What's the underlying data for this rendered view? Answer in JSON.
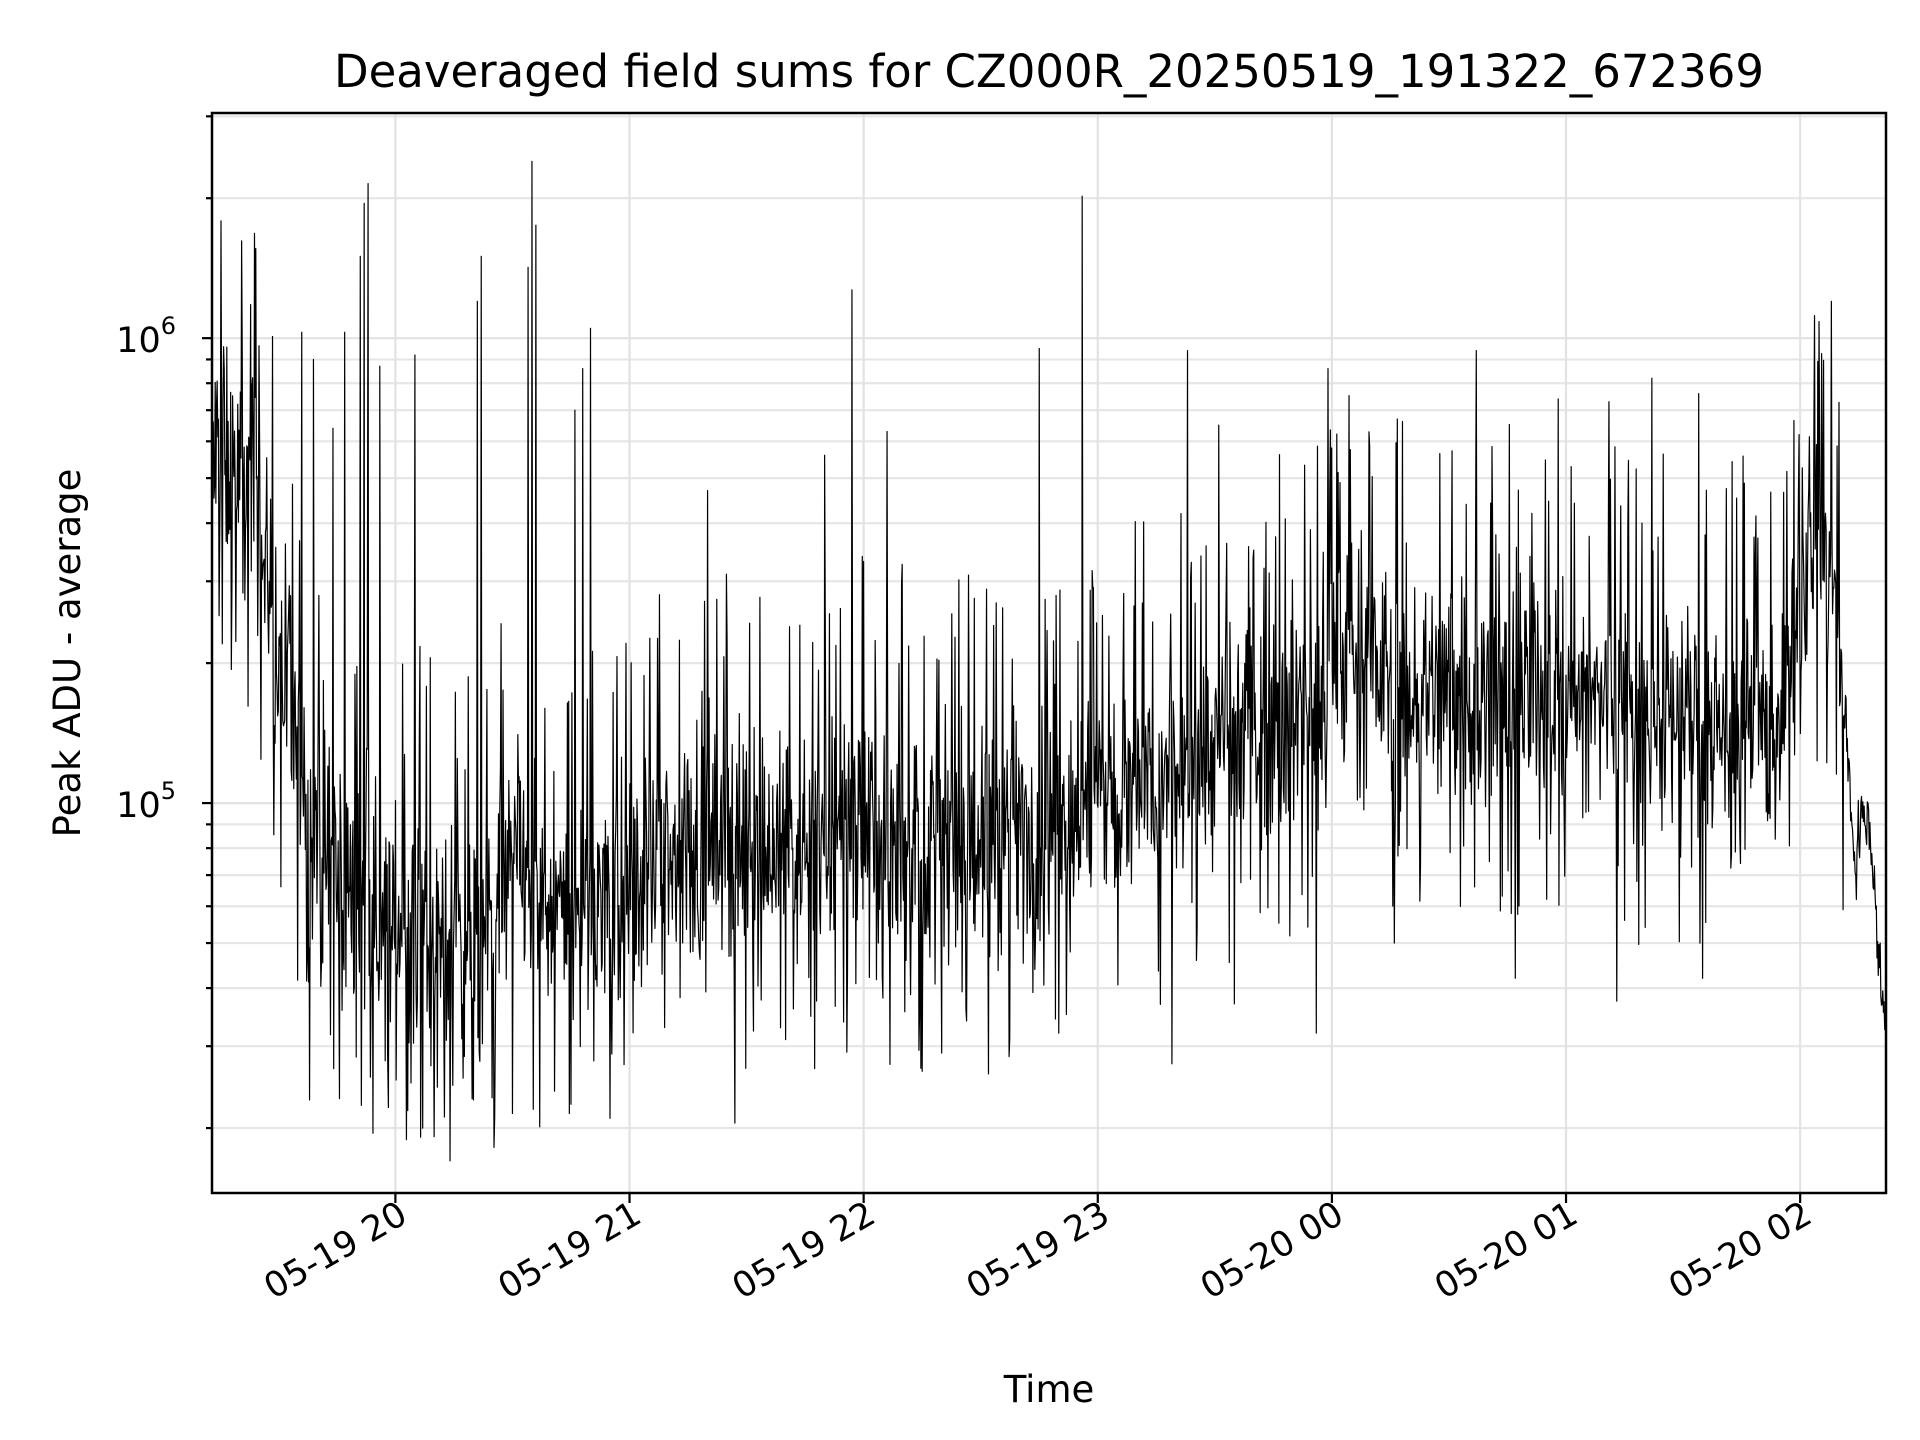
{
  "chart_data": {
    "type": "line",
    "title": "Deaveraged field sums for CZ000R_20250519_191322_672369",
    "xlabel": "Time",
    "ylabel": "Peak ADU - average",
    "yscale": "log",
    "xlim": [
      "2025-05-19 19:13",
      "2025-05-20 02:22"
    ],
    "ylim": [
      14500,
      3050000
    ],
    "grid": true,
    "x_ticks": [
      {
        "value": "2025-05-19 20:00",
        "label": "05-19 20"
      },
      {
        "value": "2025-05-19 21:00",
        "label": "05-19 21"
      },
      {
        "value": "2025-05-19 22:00",
        "label": "05-19 22"
      },
      {
        "value": "2025-05-19 23:00",
        "label": "05-19 23"
      },
      {
        "value": "2025-05-20 00:00",
        "label": "05-20 00"
      },
      {
        "value": "2025-05-20 01:00",
        "label": "05-20 01"
      },
      {
        "value": "2025-05-20 02:00",
        "label": "05-20 02"
      }
    ],
    "y_ticks": [
      {
        "value": 100000,
        "base": "10",
        "exp": "5"
      },
      {
        "value": 1000000,
        "base": "10",
        "exp": "6"
      }
    ],
    "series": [
      {
        "color": "#000000",
        "points": [
          [
            "2025-05-19 19:13",
            520000
          ],
          [
            "2025-05-19 19:16",
            600000
          ],
          [
            "2025-05-19 19:19",
            470000
          ],
          [
            "2025-05-19 19:22",
            520000
          ],
          [
            "2025-05-19 19:25",
            400000
          ],
          [
            "2025-05-19 19:28",
            280000
          ],
          [
            "2025-05-19 19:31",
            190000
          ],
          [
            "2025-05-19 19:34",
            140000
          ],
          [
            "2025-05-19 19:37",
            110000
          ],
          [
            "2025-05-19 19:40",
            92000
          ],
          [
            "2025-05-19 19:43",
            70000
          ],
          [
            "2025-05-19 19:46",
            68000
          ],
          [
            "2025-05-19 19:50",
            62000
          ],
          [
            "2025-05-19 19:54",
            55000
          ],
          [
            "2025-05-19 19:58",
            60000
          ],
          [
            "2025-05-19 20:02",
            52000
          ],
          [
            "2025-05-19 20:06",
            58000
          ],
          [
            "2025-05-19 20:10",
            50000
          ],
          [
            "2025-05-19 20:14",
            55000
          ],
          [
            "2025-05-19 20:18",
            48000
          ],
          [
            "2025-05-19 20:22",
            46000
          ],
          [
            "2025-05-19 20:26",
            60000
          ],
          [
            "2025-05-19 20:30",
            75000
          ],
          [
            "2025-05-19 20:34",
            70000
          ],
          [
            "2025-05-19 20:38",
            60000
          ],
          [
            "2025-05-19 20:42",
            58000
          ],
          [
            "2025-05-19 20:46",
            57000
          ],
          [
            "2025-05-19 20:50",
            58000
          ],
          [
            "2025-05-19 20:54",
            62000
          ],
          [
            "2025-05-19 20:58",
            66000
          ],
          [
            "2025-05-19 21:05",
            72000
          ],
          [
            "2025-05-19 21:12",
            78000
          ],
          [
            "2025-05-19 21:20",
            85000
          ],
          [
            "2025-05-19 21:28",
            82000
          ],
          [
            "2025-05-19 21:36",
            80000
          ],
          [
            "2025-05-19 21:44",
            83000
          ],
          [
            "2025-05-19 21:52",
            85000
          ],
          [
            "2025-05-19 22:00",
            88000
          ],
          [
            "2025-05-19 22:10",
            82000
          ],
          [
            "2025-05-19 22:20",
            78000
          ],
          [
            "2025-05-19 22:30",
            80000
          ],
          [
            "2025-05-19 22:40",
            88000
          ],
          [
            "2025-05-19 22:50",
            95000
          ],
          [
            "2025-05-19 23:00",
            100000
          ],
          [
            "2025-05-19 23:10",
            104000
          ],
          [
            "2025-05-19 23:20",
            110000
          ],
          [
            "2025-05-19 23:30",
            130000
          ],
          [
            "2025-05-19 23:40",
            150000
          ],
          [
            "2025-05-19 23:50",
            160000
          ],
          [
            "2025-05-20 00:00",
            175000
          ],
          [
            "2025-05-20 00:05",
            230000
          ],
          [
            "2025-05-20 00:10",
            200000
          ],
          [
            "2025-05-20 00:20",
            170000
          ],
          [
            "2025-05-20 00:30",
            180000
          ],
          [
            "2025-05-20 00:40",
            165000
          ],
          [
            "2025-05-20 00:50",
            170000
          ],
          [
            "2025-05-20 01:00",
            160000
          ],
          [
            "2025-05-20 01:10",
            165000
          ],
          [
            "2025-05-20 01:20",
            150000
          ],
          [
            "2025-05-20 01:30",
            155000
          ],
          [
            "2025-05-20 01:40",
            145000
          ],
          [
            "2025-05-20 01:50",
            140000
          ],
          [
            "2025-05-20 01:55",
            150000
          ],
          [
            "2025-05-20 02:00",
            280000
          ],
          [
            "2025-05-20 02:03",
            360000
          ],
          [
            "2025-05-20 02:06",
            370000
          ],
          [
            "2025-05-20 02:09",
            250000
          ],
          [
            "2025-05-20 02:12",
            130000
          ],
          [
            "2025-05-20 02:14",
            75000
          ],
          [
            "2025-05-20 02:16",
            95000
          ],
          [
            "2025-05-20 02:18",
            85000
          ],
          [
            "2025-05-20 02:20",
            48000
          ],
          [
            "2025-05-20 02:22",
            32000
          ]
        ],
        "peaks": [
          [
            "2025-05-19 19:36",
            1030000
          ],
          [
            "2025-05-19 19:39",
            900000
          ],
          [
            "2025-05-19 19:44",
            640000
          ],
          [
            "2025-05-19 19:47",
            1030000
          ],
          [
            "2025-05-19 19:51",
            1500000
          ],
          [
            "2025-05-19 19:52",
            1950000
          ],
          [
            "2025-05-19 19:53",
            2150000
          ],
          [
            "2025-05-19 19:56",
            870000
          ],
          [
            "2025-05-19 20:05",
            920000
          ],
          [
            "2025-05-19 20:21",
            1200000
          ],
          [
            "2025-05-19 20:22",
            1500000
          ],
          [
            "2025-05-19 20:34",
            1420000
          ],
          [
            "2025-05-19 20:35",
            2400000
          ],
          [
            "2025-05-19 20:36",
            1750000
          ],
          [
            "2025-05-19 20:46",
            700000
          ],
          [
            "2025-05-19 20:48",
            860000
          ],
          [
            "2025-05-19 20:50",
            1050000
          ],
          [
            "2025-05-19 21:20",
            470000
          ],
          [
            "2025-05-19 21:40",
            670000
          ],
          [
            "2025-05-19 21:50",
            560000
          ],
          [
            "2025-05-19 21:57",
            1270000
          ],
          [
            "2025-05-19 22:06",
            630000
          ],
          [
            "2025-05-19 22:45",
            950000
          ],
          [
            "2025-05-19 22:56",
            2020000
          ],
          [
            "2025-05-19 23:23",
            940000
          ],
          [
            "2025-05-19 23:31",
            650000
          ],
          [
            "2025-05-19 23:59",
            860000
          ],
          [
            "2025-05-20 00:37",
            940000
          ],
          [
            "2025-05-20 00:47",
            840000
          ],
          [
            "2025-05-20 00:58",
            740000
          ],
          [
            "2025-05-20 01:11",
            730000
          ],
          [
            "2025-05-20 01:22",
            820000
          ],
          [
            "2025-05-20 01:34",
            760000
          ],
          [
            "2025-05-20 02:08",
            1200000
          ]
        ],
        "troughs": [
          [
            "2025-05-19 19:38",
            23000
          ],
          [
            "2025-05-19 19:58",
            29000
          ],
          [
            "2025-05-19 20:04",
            25000
          ],
          [
            "2025-05-19 20:07",
            20000
          ],
          [
            "2025-05-19 20:14",
            17000
          ],
          [
            "2025-05-19 20:20",
            23000
          ],
          [
            "2025-05-19 20:30",
            21500
          ],
          [
            "2025-05-19 20:45",
            22500
          ],
          [
            "2025-05-19 20:55",
            21000
          ],
          [
            "2025-05-19 21:27",
            20500
          ],
          [
            "2025-05-19 21:40",
            31000
          ],
          [
            "2025-05-19 22:15",
            26500
          ],
          [
            "2025-05-19 22:20",
            29000
          ],
          [
            "2025-05-19 22:50",
            32000
          ],
          [
            "2025-05-19 23:19",
            27500
          ],
          [
            "2025-05-19 23:35",
            37000
          ],
          [
            "2025-05-19 23:56",
            32000
          ],
          [
            "2025-05-20 00:16",
            50000
          ],
          [
            "2025-05-20 00:47",
            42000
          ],
          [
            "2025-05-20 01:13",
            37500
          ],
          [
            "2025-05-20 01:35",
            42000
          ],
          [
            "2025-05-20 02:11",
            59000
          ]
        ]
      }
    ]
  }
}
